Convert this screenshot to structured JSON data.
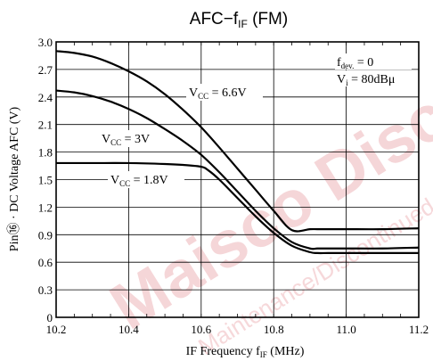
{
  "watermark": {
    "text_large": "Maisco Discontinued",
    "text_small": "Maintenance/Discontinued",
    "color": "#f2c9cc"
  },
  "chart_data": {
    "type": "line",
    "title": "AFC−f",
    "title_sub": "IF",
    "title_suffix": " (FM)",
    "xlabel": "IF Frequency f",
    "xlabel_sub": "IF",
    "xlabel_suffix": " (MHz)",
    "ylabel": "Pin⑯ · DC Voltage AFC (V)",
    "xlim": [
      10.2,
      11.2
    ],
    "ylim": [
      0,
      3.0
    ],
    "xticks": [
      10.2,
      10.4,
      10.6,
      10.8,
      11.0,
      11.2
    ],
    "xtick_labels": [
      "10.2",
      "10.4",
      "10.6",
      "10.8",
      "11.0",
      "11.2"
    ],
    "yticks": [
      0,
      0.3,
      0.6,
      0.9,
      1.2,
      1.5,
      1.8,
      2.1,
      2.4,
      2.7,
      3.0
    ],
    "ytick_labels": [
      "0",
      "0.3",
      "0.6",
      "0.9",
      "1.2",
      "1.5",
      "1.8",
      "2.1",
      "2.4",
      "2.7",
      "3.0"
    ],
    "x_minor_step": 0.05,
    "grid": true,
    "conditions": [
      {
        "text": "f",
        "sub": "dev.",
        "suffix": " = 0"
      },
      {
        "text": "V",
        "sub": "i",
        "suffix": " = 80dBμ"
      }
    ],
    "series": [
      {
        "name": "V",
        "name_sub": "CC",
        "name_suffix": " = 6.6V",
        "x": [
          10.2,
          10.25,
          10.3,
          10.35,
          10.4,
          10.45,
          10.5,
          10.55,
          10.6,
          10.65,
          10.7,
          10.75,
          10.8,
          10.85,
          10.9,
          10.92,
          10.95,
          11.0,
          11.1,
          11.2
        ],
        "values": [
          2.9,
          2.88,
          2.84,
          2.77,
          2.68,
          2.57,
          2.43,
          2.26,
          2.07,
          1.85,
          1.62,
          1.39,
          1.16,
          0.95,
          0.96,
          0.96,
          0.96,
          0.96,
          0.96,
          0.97
        ]
      },
      {
        "name": "V",
        "name_sub": "CC",
        "name_suffix": " = 3V",
        "x": [
          10.2,
          10.25,
          10.3,
          10.35,
          10.4,
          10.45,
          10.5,
          10.55,
          10.6,
          10.65,
          10.7,
          10.75,
          10.8,
          10.85,
          10.9,
          10.92,
          10.95,
          11.0,
          11.1,
          11.2
        ],
        "values": [
          2.47,
          2.45,
          2.41,
          2.35,
          2.27,
          2.17,
          2.05,
          1.92,
          1.77,
          1.58,
          1.37,
          1.16,
          0.97,
          0.82,
          0.75,
          0.75,
          0.75,
          0.75,
          0.75,
          0.76
        ]
      },
      {
        "name": "V",
        "name_sub": "CC",
        "name_suffix": " = 1.8V",
        "x": [
          10.2,
          10.3,
          10.4,
          10.5,
          10.55,
          10.6,
          10.62,
          10.65,
          10.7,
          10.75,
          10.8,
          10.85,
          10.9,
          10.92,
          10.95,
          11.0,
          11.1,
          11.2
        ],
        "values": [
          1.68,
          1.68,
          1.68,
          1.67,
          1.66,
          1.64,
          1.6,
          1.5,
          1.3,
          1.1,
          0.92,
          0.78,
          0.71,
          0.7,
          0.7,
          0.7,
          0.7,
          0.7
        ]
      }
    ]
  }
}
